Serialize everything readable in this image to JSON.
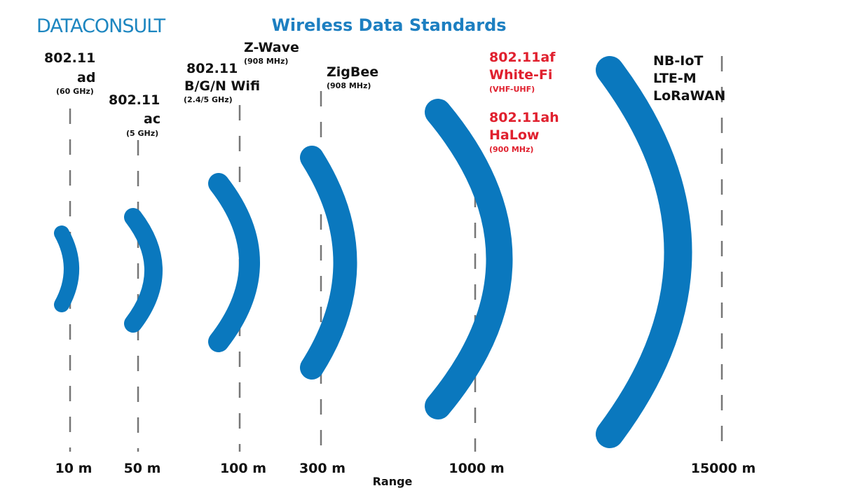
{
  "header": {
    "logo": "DATACONSULT",
    "title": "Wireless Data Standards"
  },
  "standards": [
    {
      "lines": [
        "802.11",
        "ad",
        "(60 GHz)"
      ]
    },
    {
      "lines": [
        "802.11",
        "ac",
        "(5 GHz)"
      ]
    },
    {
      "lines": [
        "802.11",
        "B/G/N Wifi",
        "(2.4/5 GHz)"
      ]
    },
    {
      "lines": [
        "Z-Wave",
        "(908 MHz)"
      ]
    },
    {
      "lines": [
        "ZigBee",
        "(908 MHz)"
      ]
    },
    {
      "lines": [
        "802.11af",
        "White-Fi",
        "(VHF-UHF)"
      ]
    },
    {
      "lines": [
        "802.11ah",
        "HaLow",
        "(900 MHz)"
      ]
    },
    {
      "lines": [
        "NB-IoT",
        "LTE-M",
        "LoRaWAN"
      ]
    }
  ],
  "ranges": [
    "10 m",
    "50 m",
    "100 m",
    "300 m",
    "1000 m",
    "15000 m"
  ],
  "axis_label": "Range"
}
